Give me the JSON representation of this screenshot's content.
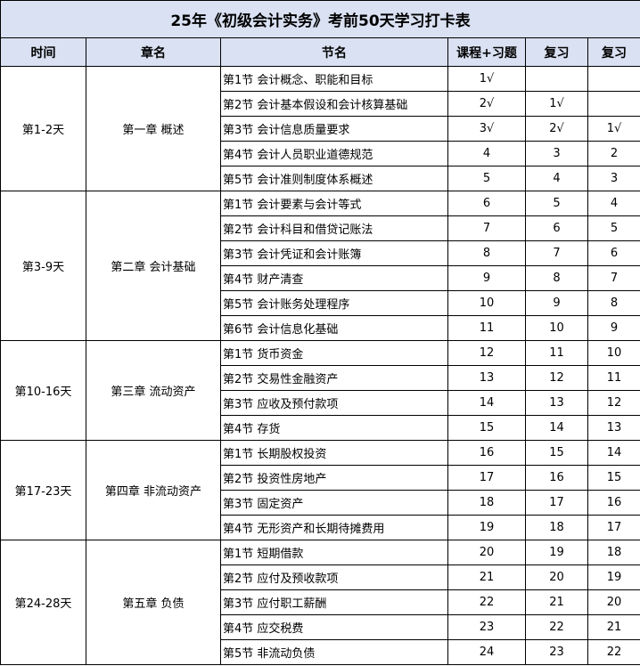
{
  "title": "25年《初级会计实务》考前50天学习打卡表",
  "headers": [
    "时间",
    "章名",
    "节名",
    "课程+习题",
    "复习",
    "复习"
  ],
  "groups": [
    {
      "time": "第1-2天",
      "chapter": "第一章 概述",
      "rows": [
        [
          "第1节 会计概念、职能和目标",
          "1√",
          "",
          ""
        ],
        [
          "第2节 会计基本假设和会计核算基础",
          "2√",
          "1√",
          ""
        ],
        [
          "第3节 会计信息质量要求",
          "3√",
          "2√",
          "1√"
        ],
        [
          "第4节 会计人员职业道德规范",
          "4",
          "3",
          "2"
        ],
        [
          "第5节 会计准则制度体系概述",
          "5",
          "4",
          "3"
        ]
      ]
    },
    {
      "time": "第3-9天",
      "chapter": "第二章 会计基础",
      "rows": [
        [
          "第1节 会计要素与会计等式",
          "6",
          "5",
          "4"
        ],
        [
          "第2节 会计科目和借贷记账法",
          "7",
          "6",
          "5"
        ],
        [
          "第3节 会计凭证和会计账簿",
          "8",
          "7",
          "6"
        ],
        [
          "第4节 财产清查",
          "9",
          "8",
          "7"
        ],
        [
          "第5节 会计账务处理程序",
          "10",
          "9",
          "8"
        ],
        [
          "第6节 会计信息化基础",
          "11",
          "10",
          "9"
        ]
      ]
    },
    {
      "time": "第10-16天",
      "chapter": "第三章 流动资产",
      "rows": [
        [
          "第1节 货币资金",
          "12",
          "11",
          "10"
        ],
        [
          "第2节 交易性金融资产",
          "13",
          "12",
          "11"
        ],
        [
          "第3节 应收及预付款项",
          "14",
          "13",
          "12"
        ],
        [
          "第4节 存货",
          "15",
          "14",
          "13"
        ]
      ]
    },
    {
      "time": "第17-23天",
      "chapter": "第四章 非流动资产",
      "rows": [
        [
          "第1节 长期股权投资",
          "16",
          "15",
          "14"
        ],
        [
          "第2节 投资性房地产",
          "17",
          "16",
          "15"
        ],
        [
          "第3节 固定资产",
          "18",
          "17",
          "16"
        ],
        [
          "第4节 无形资产和长期待摊费用",
          "19",
          "18",
          "17"
        ]
      ]
    },
    {
      "time": "第24-28天",
      "chapter": "第五章 负债",
      "rows": [
        [
          "第1节 短期借款",
          "20",
          "19",
          "18"
        ],
        [
          "第2节 应付及预收款项",
          "21",
          "20",
          "19"
        ],
        [
          "第3节 应付职工薪酬",
          "22",
          "21",
          "20"
        ],
        [
          "第4节 应交税费",
          "23",
          "22",
          "21"
        ],
        [
          "第5节 非流动负债",
          "24",
          "23",
          "22"
        ]
      ]
    }
  ]
}
